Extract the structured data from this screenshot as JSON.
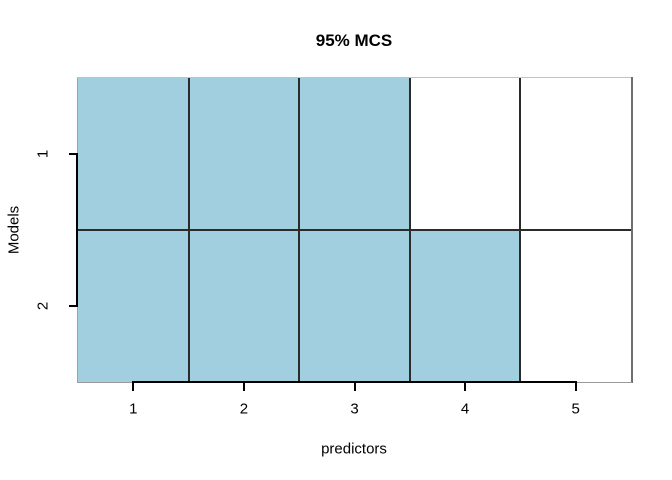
{
  "title": "95% MCS",
  "x_axis": {
    "label": "predictors",
    "tick_labels": [
      "1",
      "2",
      "3",
      "4",
      "5"
    ]
  },
  "y_axis": {
    "label": "Models",
    "tick_labels": [
      "1",
      "2"
    ]
  },
  "colors": {
    "included_fill": "#a1cfe0",
    "excluded_fill": "#ffffff",
    "grid_line": "#2b2b2b",
    "axis_line": "#000000",
    "box_top": "#c2c2c2",
    "box_right": "#6e6e6e",
    "box_bottom": "#9a9a9a",
    "box_left": "#a2a2a2",
    "text": "#000000",
    "background": "#ffffff"
  },
  "chart_data": {
    "type": "heatmap",
    "title": "95% MCS",
    "xlabel": "predictors",
    "ylabel": "Models",
    "x": [
      1,
      2,
      3,
      4,
      5
    ],
    "y": [
      1,
      2
    ],
    "xlim": [
      0.5,
      5.5
    ],
    "ylim": [
      0.5,
      2.5
    ],
    "grid": true,
    "legend": "none",
    "rows": [
      {
        "name": "1",
        "values": [
          1,
          1,
          1,
          0,
          0
        ]
      },
      {
        "name": "2",
        "values": [
          1,
          1,
          1,
          1,
          0
        ]
      }
    ],
    "value_encoding": {
      "1": "shaded",
      "0": "unshaded"
    }
  }
}
